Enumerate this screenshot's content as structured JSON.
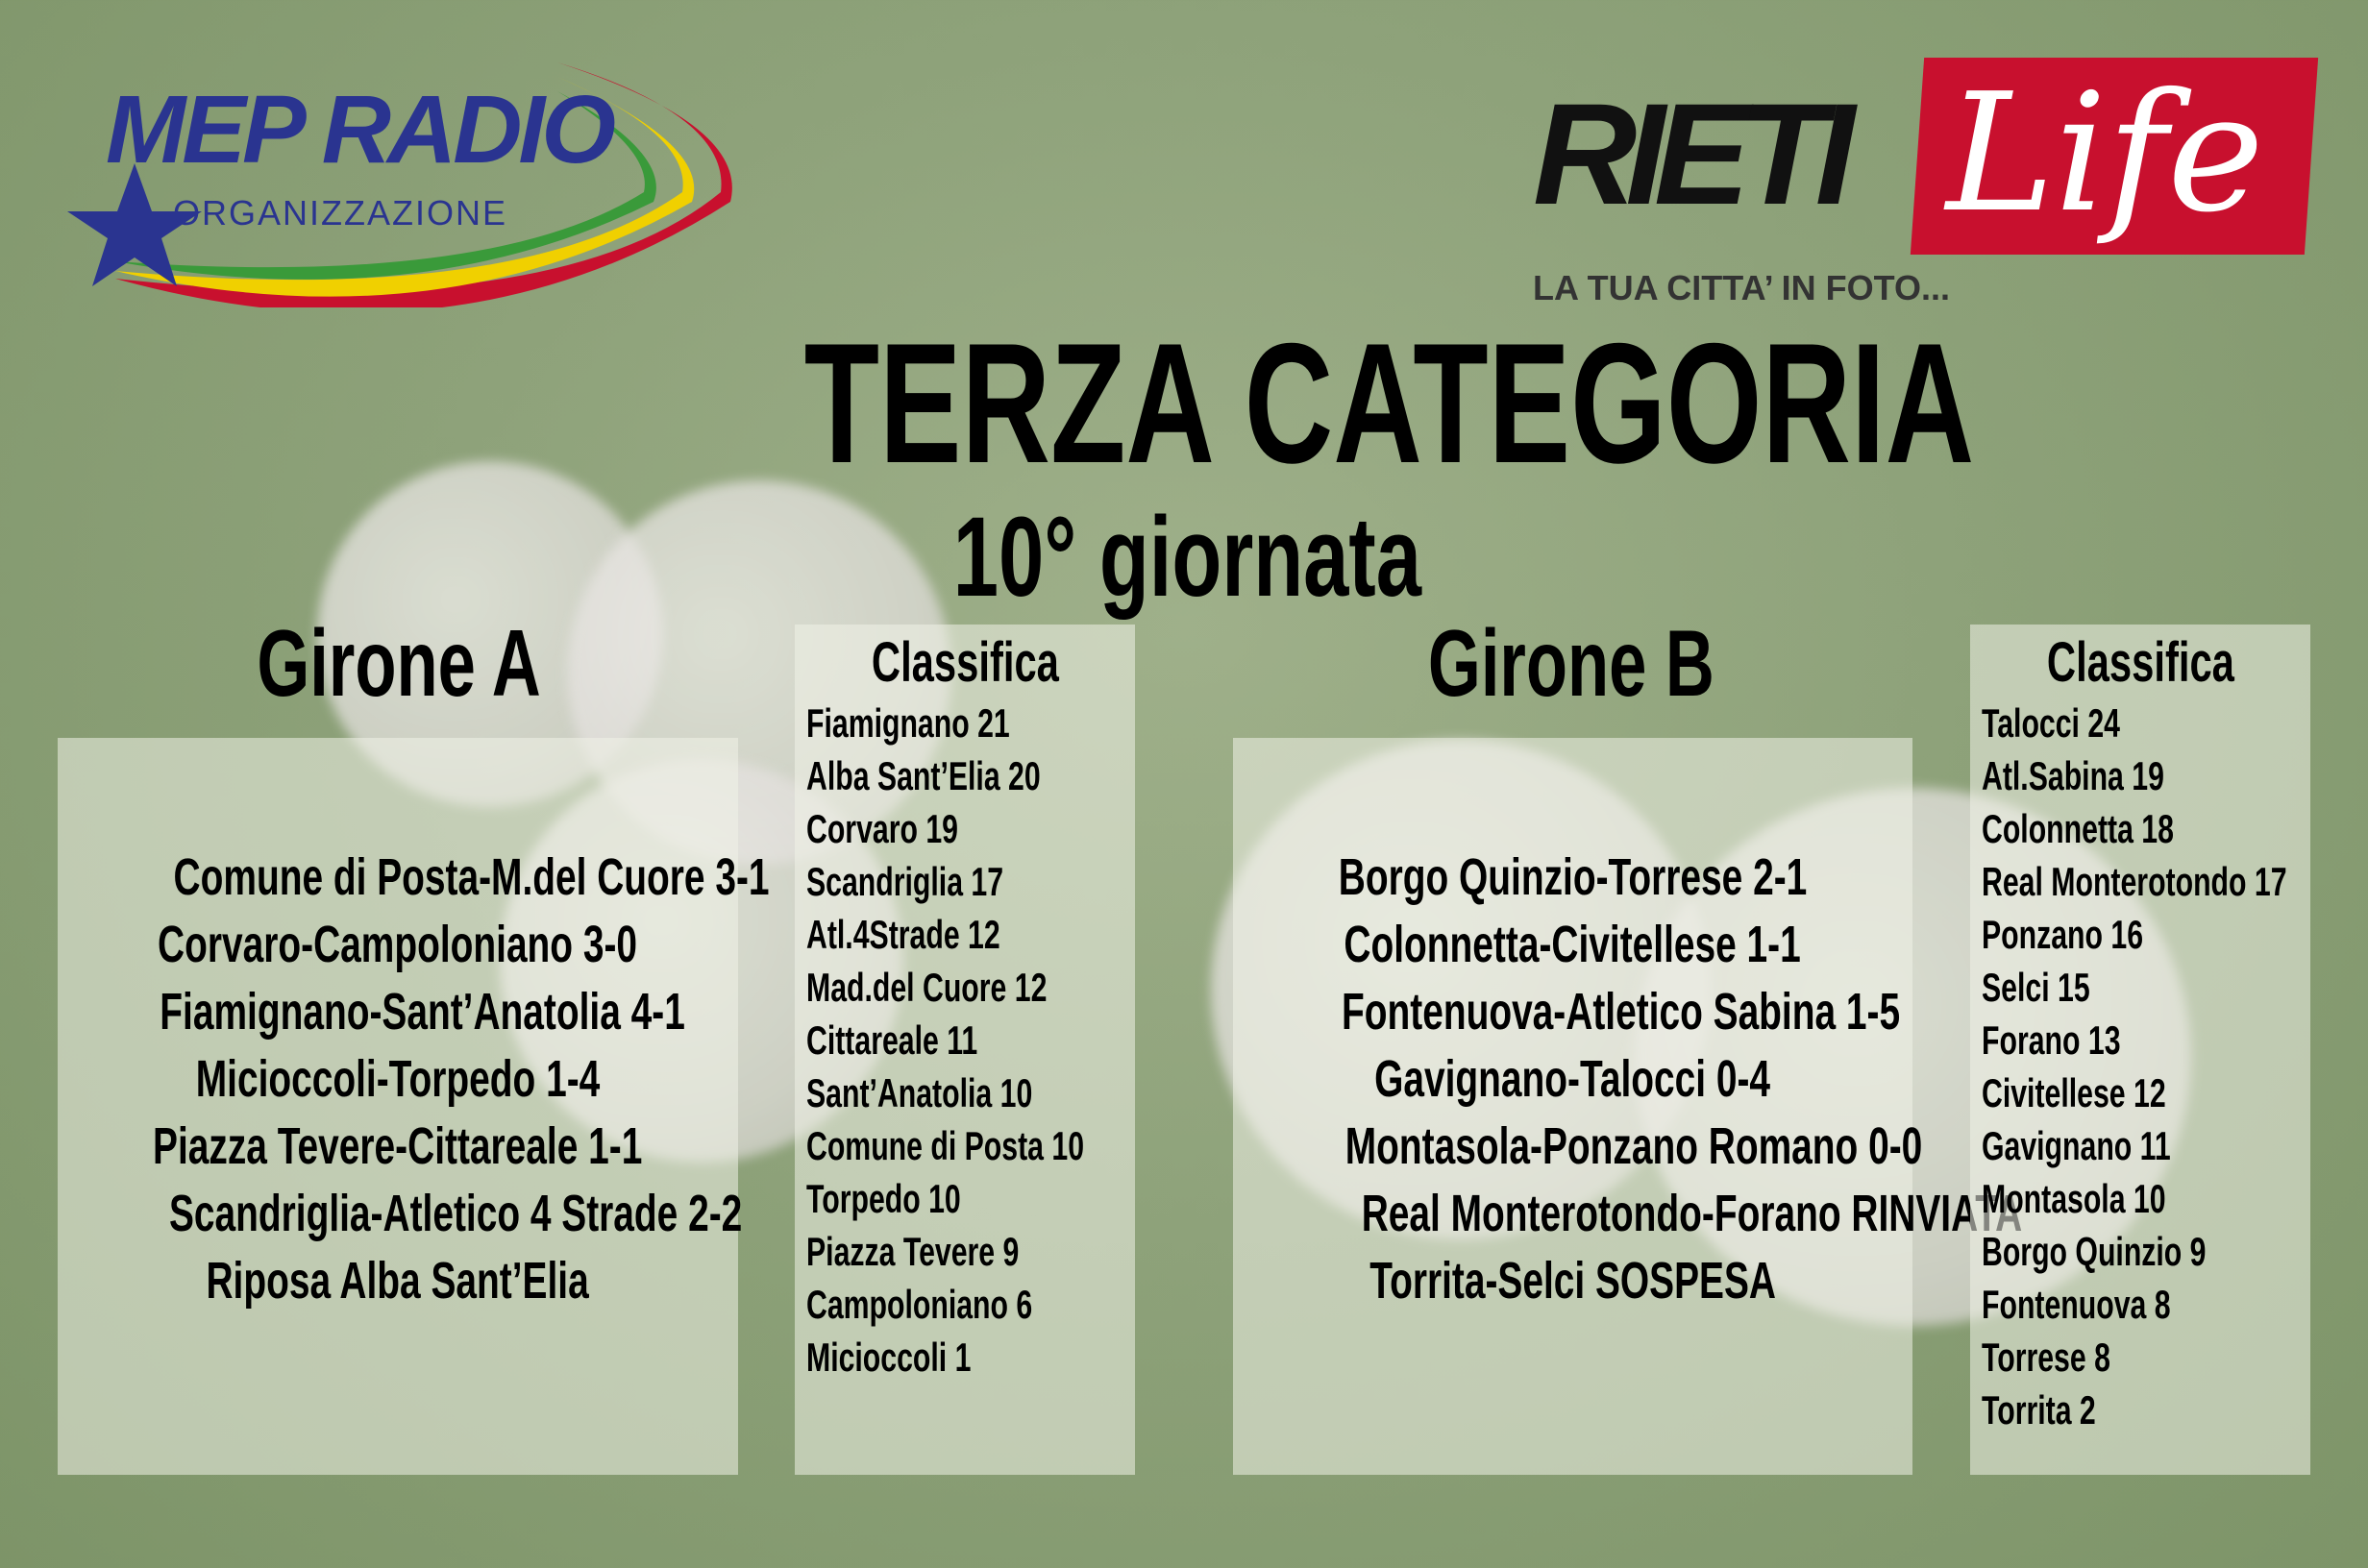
{
  "logos": {
    "mep_radio": {
      "text": "MEP RADIO",
      "sub": "ORGANIZZAZIONE"
    },
    "rieti_life": {
      "text1": "RIETI",
      "text2": "Life",
      "tagline": "LA TUA CITTA’ IN FOTO..."
    }
  },
  "title": "TERZA CATEGORIA",
  "subtitle": "10° giornata",
  "colors": {
    "mep_blue": "#2a3490",
    "rieti_red": "#c8102e",
    "panel": "#eef0e6"
  },
  "girone_a": {
    "title": "Girone A",
    "matches": [
      "Comune di Posta-M.del Cuore 3-1",
      "Corvaro-Campoloniano 3-0",
      "Fiamignano-Sant’Anatolia 4-1",
      "Micioccoli-Torpedo 1-4",
      "Piazza Tevere-Cittareale 1-1",
      "Scandriglia-Atletico 4 Strade 2-2",
      "Riposa Alba Sant’Elia"
    ],
    "classifica_title": "Classifica",
    "classifica": [
      "Fiamignano 21",
      "Alba Sant’Elia 20",
      "Corvaro 19",
      "Scandriglia 17",
      "Atl.4Strade 12",
      "Mad.del Cuore 12",
      "Cittareale 11",
      "Sant’Anatolia 10",
      "Comune di Posta 10",
      "Torpedo 10",
      "Piazza Tevere 9",
      "Campoloniano 6",
      "Micioccoli 1"
    ]
  },
  "girone_b": {
    "title": "Girone B",
    "matches": [
      "Borgo Quinzio-Torrese 2-1",
      "Colonnetta-Civitellese 1-1",
      "Fontenuova-Atletico Sabina 1-5",
      "Gavignano-Talocci 0-4",
      "Montasola-Ponzano Romano 0-0",
      "Real Monterotondo-Forano RINVIATA",
      "Torrita-Selci SOSPESA"
    ],
    "classifica_title": "Classifica",
    "classifica": [
      "Talocci 24",
      "Atl.Sabina 19",
      "Colonnetta 18",
      "Real Monterotondo 17",
      "Ponzano 16",
      "Selci 15",
      "Forano 13",
      "Civitellese 12",
      "Gavignano 11",
      "Montasola 10",
      "Borgo Quinzio 9",
      "Fontenuova 8",
      "Torrese 8",
      "Torrita 2"
    ]
  }
}
